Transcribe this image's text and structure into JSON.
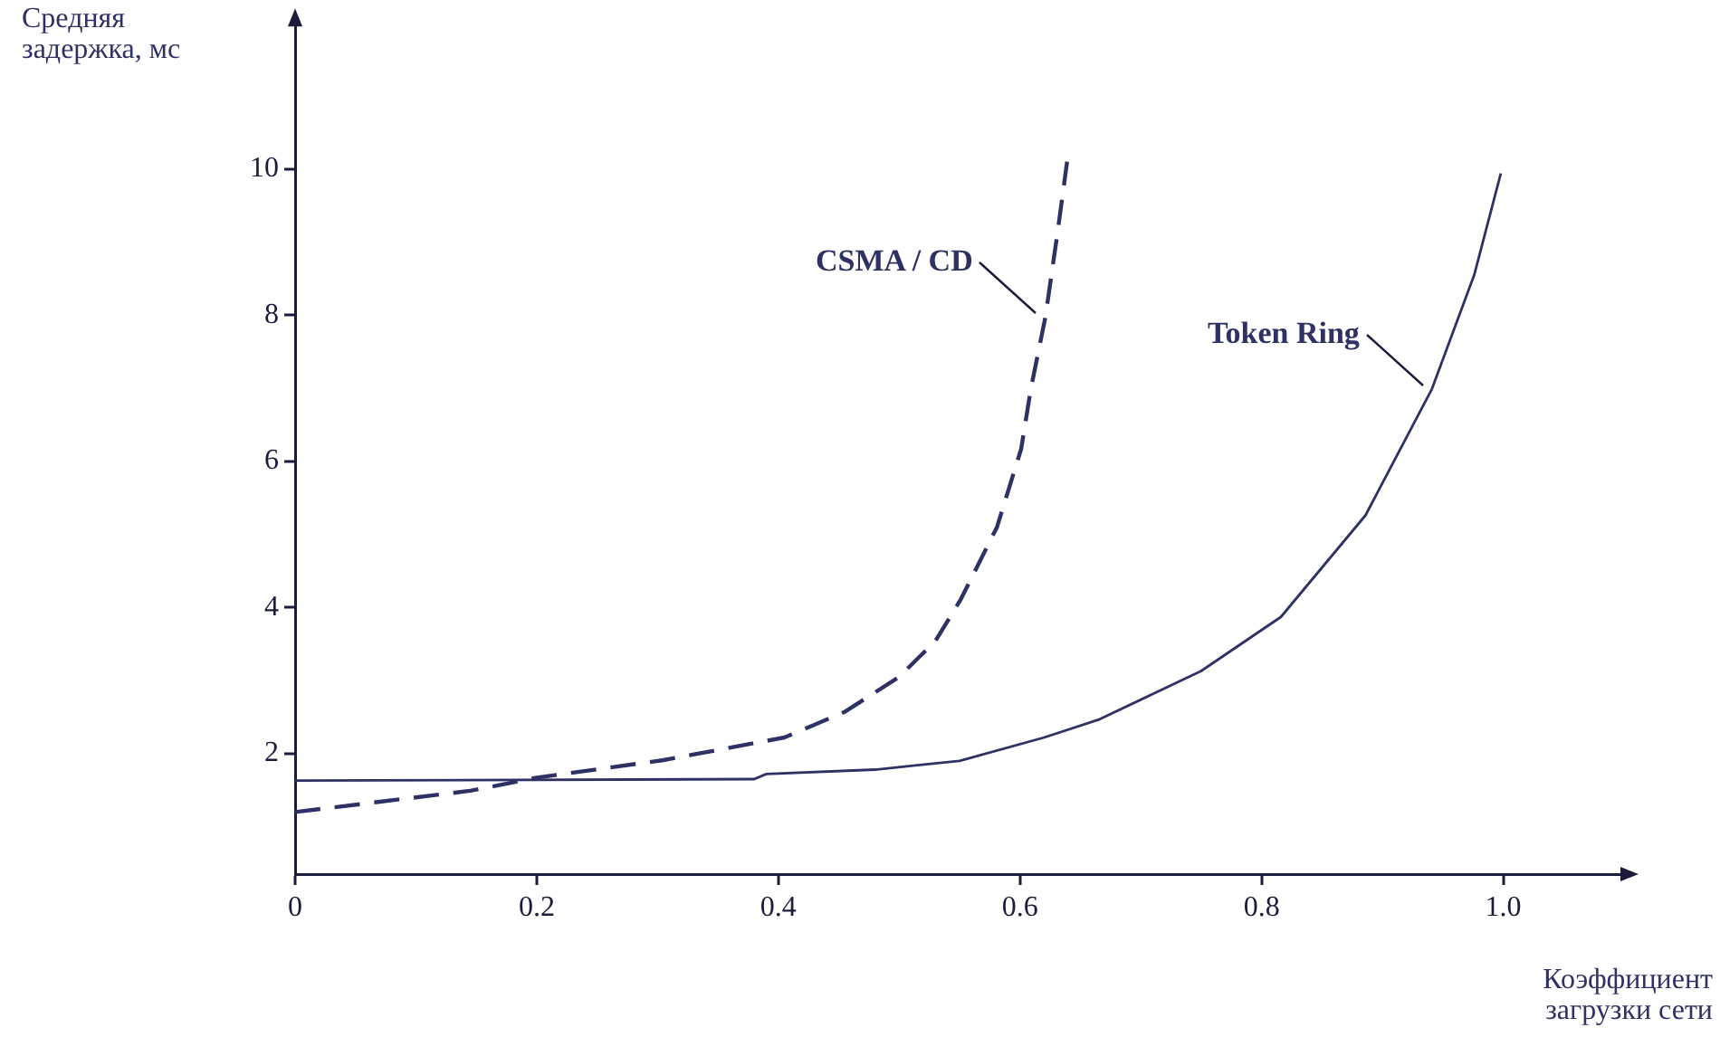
{
  "chart_data": {
    "type": "line",
    "xlabel": "Коэффициент загрузки сети",
    "ylabel": "Средняя задержка, мс",
    "xlim": [
      0,
      1.1
    ],
    "xticks": [
      0,
      0.2,
      0.4,
      0.6,
      0.8,
      {
        "value": 1,
        "label": "1.0"
      }
    ],
    "ylim": [
      0.35,
      12
    ],
    "yticks": [
      2,
      4,
      6,
      8,
      10
    ],
    "grid": false,
    "legend": false,
    "marker": "none",
    "series": [
      {
        "name": "CSMA / CD",
        "color": "#2e3164",
        "line_style": "dashed",
        "x": [
          0,
          0.145,
          0.2,
          0.305,
          0.405,
          0.455,
          0.5,
          0.53,
          0.551,
          0.581,
          0.601,
          0.609,
          0.621,
          0.631,
          0.639
        ],
        "values": [
          1.2,
          1.49,
          1.67,
          1.91,
          2.22,
          2.57,
          3.05,
          3.54,
          4.11,
          5.1,
          6.17,
          6.99,
          7.97,
          9.12,
          10.1
        ]
      },
      {
        "name": "Token Ring",
        "color": "#2e3164",
        "line_style": "solid",
        "x": [
          0,
          0.38,
          0.39,
          0.48,
          0.55,
          0.62,
          0.666,
          0.75,
          0.816,
          0.886,
          0.941,
          0.976,
          0.998
        ],
        "values": [
          1.63,
          1.65,
          1.72,
          1.78,
          1.9,
          2.22,
          2.47,
          3.13,
          3.87,
          5.26,
          6.99,
          8.55,
          9.94
        ]
      }
    ]
  }
}
